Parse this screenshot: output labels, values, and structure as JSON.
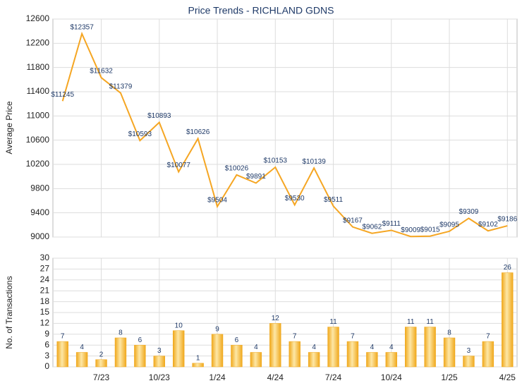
{
  "chart_data": [
    {
      "type": "line",
      "title": "Price Trends - RICHLAND GDNS",
      "ylabel": "Average Price",
      "color": "#f5a623",
      "values": [
        11245,
        12357,
        11632,
        11379,
        10593,
        10893,
        10077,
        10626,
        9504,
        10026,
        9891,
        10153,
        9530,
        10139,
        9511,
        9167,
        9062,
        9111,
        9009,
        9015,
        9095,
        9309,
        9102,
        9186
      ],
      "value_labels": [
        "$11245",
        "$12357",
        "$11632",
        "$11379",
        "$10593",
        "$10893",
        "$10077",
        "$10626",
        "$9504",
        "$10026",
        "$9891",
        "$10153",
        "$9530",
        "$10139",
        "$9511",
        "$9167",
        "$9062",
        "$9111",
        "$9009",
        "$9015",
        "$9095",
        "$9309",
        "$9102",
        "$9186"
      ],
      "ylim": [
        9000,
        12600
      ],
      "yticks": [
        9000,
        9400,
        9800,
        10200,
        10600,
        11000,
        11400,
        11800,
        12200,
        12600
      ],
      "grid": true
    },
    {
      "type": "bar",
      "ylabel": "No. of Transactions",
      "color": "#f0a81c",
      "categories": [
        null,
        null,
        "7/23",
        null,
        null,
        "10/23",
        null,
        null,
        "1/24",
        null,
        null,
        "4/24",
        null,
        null,
        "7/24",
        null,
        null,
        "10/24",
        null,
        null,
        "1/25",
        null,
        null,
        "4/25"
      ],
      "values": [
        7,
        4,
        2,
        8,
        6,
        3,
        10,
        1,
        9,
        6,
        4,
        12,
        7,
        4,
        11,
        7,
        4,
        4,
        11,
        11,
        8,
        3,
        7,
        26
      ],
      "ylim": [
        0,
        30
      ],
      "yticks": [
        0,
        3,
        6,
        9,
        12,
        15,
        18,
        21,
        24,
        27,
        30
      ],
      "grid": true
    }
  ]
}
